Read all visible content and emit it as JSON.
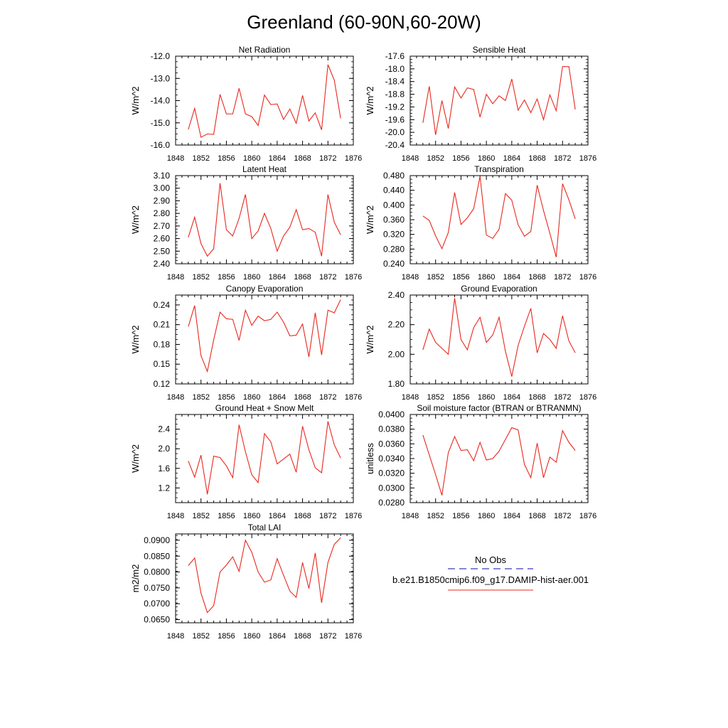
{
  "figure": {
    "title": "Greenland (60-90N,60-20W)"
  },
  "legend": {
    "entries": [
      {
        "label": "No Obs",
        "color": "#3c3cb4",
        "dash": true
      },
      {
        "label": "b.e21.B1850cmip6.f09_g17.DAMIP-hist-aer.001",
        "color": "#e8281e",
        "dash": false
      }
    ]
  },
  "chart_data": [
    {
      "type": "line",
      "title": "Net Radiation",
      "ylabel": "W/m^2",
      "xlim": [
        1848,
        1876
      ],
      "xticks": [
        1848,
        1852,
        1856,
        1860,
        1864,
        1868,
        1872,
        1876
      ],
      "ylim": [
        -16.0,
        -12.0
      ],
      "yticks": [
        "-12.0",
        "-13.0",
        "-14.0",
        "-15.0",
        "-16.0"
      ],
      "series": [
        {
          "color": "#e8281e",
          "x": [
            1850,
            1851,
            1852,
            1853,
            1854,
            1855,
            1856,
            1857,
            1858,
            1859,
            1860,
            1861,
            1862,
            1863,
            1864,
            1865,
            1866,
            1867,
            1868,
            1869,
            1870,
            1871,
            1872,
            1873,
            1874
          ],
          "values": [
            -15.3,
            -14.35,
            -15.65,
            -15.5,
            -15.52,
            -13.72,
            -14.6,
            -14.6,
            -13.45,
            -14.6,
            -14.72,
            -15.12,
            -13.75,
            -14.18,
            -14.15,
            -14.85,
            -14.38,
            -15.02,
            -13.77,
            -14.92,
            -14.55,
            -15.32,
            -12.38,
            -13.08,
            -14.8
          ]
        }
      ]
    },
    {
      "type": "line",
      "title": "Sensible Heat",
      "ylabel": "W/m^2",
      "xlim": [
        1848,
        1876
      ],
      "xticks": [
        1848,
        1852,
        1856,
        1860,
        1864,
        1868,
        1872,
        1876
      ],
      "ylim": [
        -20.4,
        -17.6
      ],
      "yticks": [
        "-17.6",
        "-18.0",
        "-18.4",
        "-18.8",
        "-19.2",
        "-19.6",
        "-20.0",
        "-20.4"
      ],
      "series": [
        {
          "color": "#e8281e",
          "x": [
            1850,
            1851,
            1852,
            1853,
            1854,
            1855,
            1856,
            1857,
            1858,
            1859,
            1860,
            1861,
            1862,
            1863,
            1864,
            1865,
            1866,
            1867,
            1868,
            1869,
            1870,
            1871,
            1872,
            1873,
            1874
          ],
          "values": [
            -19.7,
            -18.55,
            -20.08,
            -19.0,
            -19.88,
            -18.57,
            -18.92,
            -18.6,
            -18.65,
            -19.52,
            -18.8,
            -19.1,
            -18.85,
            -19.0,
            -18.32,
            -19.3,
            -18.98,
            -19.38,
            -18.95,
            -19.6,
            -18.82,
            -19.32,
            -17.93,
            -17.93,
            -19.28
          ]
        }
      ]
    },
    {
      "type": "line",
      "title": "Latent Heat",
      "ylabel": "W/m^2",
      "xlim": [
        1848,
        1876
      ],
      "xticks": [
        1848,
        1852,
        1856,
        1860,
        1864,
        1868,
        1872,
        1876
      ],
      "ylim": [
        2.4,
        3.1
      ],
      "yticks": [
        "3.10",
        "3.00",
        "2.90",
        "2.80",
        "2.70",
        "2.60",
        "2.50",
        "2.40"
      ],
      "series": [
        {
          "color": "#e8281e",
          "x": [
            1850,
            1851,
            1852,
            1853,
            1854,
            1855,
            1856,
            1857,
            1858,
            1859,
            1860,
            1861,
            1862,
            1863,
            1864,
            1865,
            1866,
            1867,
            1868,
            1869,
            1870,
            1871,
            1872,
            1873,
            1874
          ],
          "values": [
            2.61,
            2.77,
            2.56,
            2.46,
            2.52,
            3.04,
            2.67,
            2.62,
            2.76,
            2.95,
            2.6,
            2.66,
            2.8,
            2.68,
            2.5,
            2.62,
            2.69,
            2.83,
            2.67,
            2.68,
            2.65,
            2.46,
            2.95,
            2.73,
            2.63
          ]
        }
      ]
    },
    {
      "type": "line",
      "title": "Transpiration",
      "ylabel": "W/m^2",
      "xlim": [
        1848,
        1876
      ],
      "xticks": [
        1848,
        1852,
        1856,
        1860,
        1864,
        1868,
        1872,
        1876
      ],
      "ylim": [
        0.24,
        0.48
      ],
      "yticks": [
        "0.480",
        "0.440",
        "0.400",
        "0.360",
        "0.320",
        "0.280",
        "0.240"
      ],
      "series": [
        {
          "color": "#e8281e",
          "x": [
            1850,
            1851,
            1852,
            1853,
            1854,
            1855,
            1856,
            1857,
            1858,
            1859,
            1860,
            1861,
            1862,
            1863,
            1864,
            1865,
            1866,
            1867,
            1868,
            1869,
            1870,
            1871,
            1872,
            1873,
            1874
          ],
          "values": [
            0.37,
            0.358,
            0.316,
            0.281,
            0.325,
            0.434,
            0.347,
            0.365,
            0.39,
            0.478,
            0.318,
            0.309,
            0.334,
            0.431,
            0.413,
            0.346,
            0.315,
            0.328,
            0.454,
            0.385,
            0.323,
            0.258,
            0.458,
            0.414,
            0.362
          ]
        }
      ]
    },
    {
      "type": "line",
      "title": "Canopy Evaporation",
      "ylabel": "W/m^2",
      "xlim": [
        1848,
        1876
      ],
      "xticks": [
        1848,
        1852,
        1856,
        1860,
        1864,
        1868,
        1872,
        1876
      ],
      "ylim": [
        0.12,
        0.255
      ],
      "yticks": [
        "0.24",
        "0.21",
        "0.18",
        "0.15",
        "0.12"
      ],
      "series": [
        {
          "color": "#e8281e",
          "x": [
            1850,
            1851,
            1852,
            1853,
            1854,
            1855,
            1856,
            1857,
            1858,
            1859,
            1860,
            1861,
            1862,
            1863,
            1864,
            1865,
            1866,
            1867,
            1868,
            1869,
            1870,
            1871,
            1872,
            1873,
            1874
          ],
          "values": [
            0.207,
            0.239,
            0.163,
            0.139,
            0.187,
            0.229,
            0.219,
            0.218,
            0.186,
            0.232,
            0.209,
            0.223,
            0.216,
            0.218,
            0.229,
            0.214,
            0.193,
            0.194,
            0.211,
            0.161,
            0.228,
            0.164,
            0.232,
            0.228,
            0.248
          ]
        }
      ]
    },
    {
      "type": "line",
      "title": "Ground Evaporation",
      "ylabel": "W/m^2",
      "xlim": [
        1848,
        1876
      ],
      "xticks": [
        1848,
        1852,
        1856,
        1860,
        1864,
        1868,
        1872,
        1876
      ],
      "ylim": [
        1.8,
        2.4
      ],
      "yticks": [
        "2.40",
        "2.20",
        "2.00",
        "1.80"
      ],
      "series": [
        {
          "color": "#e8281e",
          "x": [
            1850,
            1851,
            1852,
            1853,
            1854,
            1855,
            1856,
            1857,
            1858,
            1859,
            1860,
            1861,
            1862,
            1863,
            1864,
            1865,
            1866,
            1867,
            1868,
            1869,
            1870,
            1871,
            1872,
            1873,
            1874
          ],
          "values": [
            2.03,
            2.17,
            2.08,
            2.04,
            2.0,
            2.38,
            2.1,
            2.03,
            2.18,
            2.25,
            2.08,
            2.13,
            2.25,
            2.02,
            1.85,
            2.06,
            2.19,
            2.31,
            2.01,
            2.14,
            2.1,
            2.04,
            2.26,
            2.09,
            2.01
          ]
        }
      ]
    },
    {
      "type": "line",
      "title": "Ground Heat + Snow Melt",
      "ylabel": "W/m^2",
      "xlim": [
        1848,
        1876
      ],
      "xticks": [
        1848,
        1852,
        1856,
        1860,
        1864,
        1868,
        1872,
        1876
      ],
      "ylim": [
        0.9,
        2.7
      ],
      "yticks": [
        "2.4",
        "2.0",
        "1.6",
        "1.2"
      ],
      "series": [
        {
          "color": "#e8281e",
          "x": [
            1850,
            1851,
            1852,
            1853,
            1854,
            1855,
            1856,
            1857,
            1858,
            1859,
            1860,
            1861,
            1862,
            1863,
            1864,
            1865,
            1866,
            1867,
            1868,
            1869,
            1870,
            1871,
            1872,
            1873,
            1874
          ],
          "values": [
            1.75,
            1.42,
            1.87,
            1.07,
            1.85,
            1.82,
            1.65,
            1.41,
            2.49,
            1.94,
            1.47,
            1.31,
            2.31,
            2.14,
            1.69,
            1.79,
            1.89,
            1.52,
            2.46,
            1.98,
            1.61,
            1.51,
            2.56,
            2.08,
            1.81
          ]
        }
      ]
    },
    {
      "type": "line",
      "title": "Soil moisture factor (BTRAN or BTRANMN)",
      "ylabel": "unitless",
      "xlim": [
        1848,
        1876
      ],
      "xticks": [
        1848,
        1852,
        1856,
        1860,
        1864,
        1868,
        1872,
        1876
      ],
      "ylim": [
        0.028,
        0.04
      ],
      "yticks": [
        "0.0400",
        "0.0380",
        "0.0360",
        "0.0340",
        "0.0320",
        "0.0300",
        "0.0280"
      ],
      "series": [
        {
          "color": "#e8281e",
          "x": [
            1850,
            1851,
            1852,
            1853,
            1854,
            1855,
            1856,
            1857,
            1858,
            1859,
            1860,
            1861,
            1862,
            1863,
            1864,
            1865,
            1866,
            1867,
            1868,
            1869,
            1870,
            1871,
            1872,
            1873,
            1874
          ],
          "values": [
            0.0372,
            0.0345,
            0.0318,
            0.029,
            0.0348,
            0.037,
            0.0351,
            0.0352,
            0.0337,
            0.0362,
            0.0338,
            0.034,
            0.035,
            0.0366,
            0.0382,
            0.0379,
            0.0332,
            0.0314,
            0.0361,
            0.0314,
            0.0342,
            0.0335,
            0.0378,
            0.0362,
            0.0351
          ]
        }
      ]
    },
    {
      "type": "line",
      "title": "Total LAI",
      "ylabel": "m2/m2",
      "xlim": [
        1848,
        1876
      ],
      "xticks": [
        1848,
        1852,
        1856,
        1860,
        1864,
        1868,
        1872,
        1876
      ],
      "ylim": [
        0.064,
        0.092
      ],
      "yticks": [
        "0.0900",
        "0.0850",
        "0.0800",
        "0.0750",
        "0.0700",
        "0.0650"
      ],
      "series": [
        {
          "color": "#e8281e",
          "x": [
            1850,
            1851,
            1852,
            1853,
            1854,
            1855,
            1856,
            1857,
            1858,
            1859,
            1860,
            1861,
            1862,
            1863,
            1864,
            1865,
            1866,
            1867,
            1868,
            1869,
            1870,
            1871,
            1872,
            1873,
            1874
          ],
          "values": [
            0.082,
            0.0844,
            0.0733,
            0.0672,
            0.0694,
            0.08,
            0.0822,
            0.0848,
            0.0802,
            0.09,
            0.0862,
            0.08,
            0.0768,
            0.0775,
            0.0842,
            0.079,
            0.074,
            0.072,
            0.083,
            0.0748,
            0.086,
            0.0703,
            0.083,
            0.0887,
            0.0908
          ]
        }
      ]
    }
  ]
}
